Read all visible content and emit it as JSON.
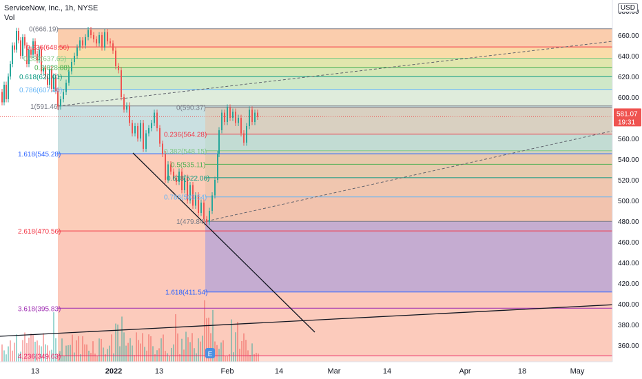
{
  "header": {
    "symbol_line": "ServiceNow, Inc., 1h, NYSE",
    "volume_label": "Vol",
    "currency": "USD"
  },
  "price_tag": {
    "price": "581.07",
    "countdown": "19:31",
    "color": "#ef5350"
  },
  "chart_data": {
    "type": "line",
    "title": "ServiceNow, Inc., 1h, NYSE",
    "xlabel": "",
    "ylabel": "",
    "ylim": [
      340,
      680
    ],
    "grid": false,
    "y_ticks": [
      360,
      380,
      400,
      420,
      440,
      460,
      480,
      500,
      520,
      540,
      560,
      580,
      600,
      620,
      640,
      660
    ],
    "top_clipped_tick": "680.00",
    "x_ticks": [
      "13",
      "2022",
      "13",
      "Feb",
      "14",
      "Mar",
      "14",
      "Apr",
      "18",
      "May"
    ],
    "price_path": [
      [
        0,
        605
      ],
      [
        3,
        595
      ],
      [
        6,
        612
      ],
      [
        9,
        598
      ],
      [
        12,
        620
      ],
      [
        15,
        632
      ],
      [
        18,
        650
      ],
      [
        21,
        646
      ],
      [
        24,
        664
      ],
      [
        27,
        655
      ],
      [
        30,
        640
      ],
      [
        33,
        658
      ],
      [
        36,
        650
      ],
      [
        39,
        632
      ],
      [
        42,
        646
      ],
      [
        45,
        641
      ],
      [
        48,
        654
      ],
      [
        51,
        642
      ],
      [
        54,
        636
      ],
      [
        57,
        646
      ],
      [
        60,
        625
      ],
      [
        63,
        628
      ],
      [
        66,
        620
      ],
      [
        69,
        612
      ],
      [
        72,
        627
      ],
      [
        75,
        608
      ],
      [
        78,
        620
      ],
      [
        81,
        606
      ],
      [
        84,
        591
      ],
      [
        88,
        598
      ],
      [
        92,
        605
      ],
      [
        96,
        614
      ],
      [
        100,
        625
      ],
      [
        104,
        634
      ],
      [
        108,
        640
      ],
      [
        112,
        648
      ],
      [
        116,
        655
      ],
      [
        120,
        650
      ],
      [
        124,
        658
      ],
      [
        128,
        665
      ],
      [
        132,
        660
      ],
      [
        136,
        656
      ],
      [
        140,
        652
      ],
      [
        144,
        660
      ],
      [
        148,
        648
      ],
      [
        152,
        663
      ],
      [
        156,
        654
      ],
      [
        160,
        652
      ],
      [
        164,
        645
      ],
      [
        168,
        630
      ],
      [
        172,
        626
      ],
      [
        176,
        600
      ],
      [
        180,
        588
      ],
      [
        184,
        592
      ],
      [
        188,
        575
      ],
      [
        192,
        565
      ],
      [
        196,
        572
      ],
      [
        200,
        560
      ],
      [
        204,
        575
      ],
      [
        208,
        550
      ],
      [
        212,
        565
      ],
      [
        216,
        570
      ],
      [
        220,
        575
      ],
      [
        224,
        585
      ],
      [
        228,
        570
      ],
      [
        232,
        555
      ],
      [
        236,
        545
      ],
      [
        240,
        520
      ],
      [
        244,
        535
      ],
      [
        248,
        528
      ],
      [
        252,
        522
      ],
      [
        256,
        518
      ],
      [
        260,
        528
      ],
      [
        264,
        510
      ],
      [
        268,
        522
      ],
      [
        272,
        500
      ],
      [
        276,
        515
      ],
      [
        280,
        495
      ],
      [
        284,
        505
      ],
      [
        288,
        488
      ],
      [
        292,
        498
      ],
      [
        296,
        482
      ],
      [
        300,
        479
      ],
      [
        304,
        490
      ],
      [
        308,
        505
      ],
      [
        312,
        520
      ],
      [
        316,
        545
      ],
      [
        318,
        568
      ],
      [
        322,
        585
      ],
      [
        326,
        576
      ],
      [
        330,
        590
      ],
      [
        334,
        580
      ],
      [
        338,
        586
      ],
      [
        342,
        575
      ],
      [
        346,
        580
      ],
      [
        350,
        565
      ],
      [
        354,
        556
      ],
      [
        358,
        572
      ],
      [
        362,
        588
      ],
      [
        366,
        576
      ],
      [
        370,
        585
      ],
      [
        374,
        581
      ]
    ],
    "fib_set_1": [
      {
        "label": "0(666.19)",
        "value": 666.19,
        "color": "#787b86",
        "band": "#f7a46a"
      },
      {
        "label": "0.236(648.56)",
        "value": 648.56,
        "color": "#f23645",
        "band": "#f5c063"
      },
      {
        "label": "0.382(637.65)",
        "value": 637.65,
        "color": "#81c784",
        "band": "#c8d26a"
      },
      {
        "label": "0.5(628.88)",
        "value": 628.88,
        "color": "#4caf50",
        "band": "#b5d47a"
      },
      {
        "label": "0.618(620.01)",
        "value": 620.01,
        "color": "#089981",
        "band": "#a8d59a"
      },
      {
        "label": "0.786(607.46)",
        "value": 607.46,
        "color": "#64b5f6",
        "band": "#c5dcc0"
      },
      {
        "label": "1(591.46)",
        "value": 591.46,
        "color": "#787b86",
        "band": "#9fc7c8"
      },
      {
        "label": "1.618(545.28)",
        "value": 545.28,
        "color": "#2962ff",
        "band": "#f9a47f"
      },
      {
        "label": "2.618(470.56)",
        "value": 470.56,
        "color": "#f23645",
        "band": "#f99a82"
      },
      {
        "label": "3.618(395.83)",
        "value": 395.83,
        "color": "#9c27b0",
        "band": "#f9a085"
      },
      {
        "label": "4.236(349.63)",
        "value": 349.63,
        "color": "#e91e63",
        "band": ""
      }
    ],
    "fib_set_2": [
      {
        "label": "0(590.37)",
        "value": 590.37,
        "color": "#787b86",
        "band": "#e6c3a8"
      },
      {
        "label": "0.236(564.28)",
        "value": 564.28,
        "color": "#f23645",
        "band": "#bcd8c8"
      },
      {
        "label": "0.382(548.15)",
        "value": 548.15,
        "color": "#81c784",
        "band": "#d8c7a3"
      },
      {
        "label": "0.5(535.11)",
        "value": 535.11,
        "color": "#4caf50",
        "band": "#d6c9a5"
      },
      {
        "label": "0.618(522.06)",
        "value": 522.06,
        "color": "#089981",
        "band": "#e5c1a8"
      },
      {
        "label": "0.786(503.54)",
        "value": 503.54,
        "color": "#64b5f6",
        "band": "#e9bba6"
      },
      {
        "label": "1(479.84)",
        "value": 479.84,
        "color": "#787b86",
        "band": "#c1a8c8"
      },
      {
        "label": "1.618(411.54)",
        "value": 411.54,
        "color": "#2962ff",
        "band": ""
      }
    ]
  }
}
